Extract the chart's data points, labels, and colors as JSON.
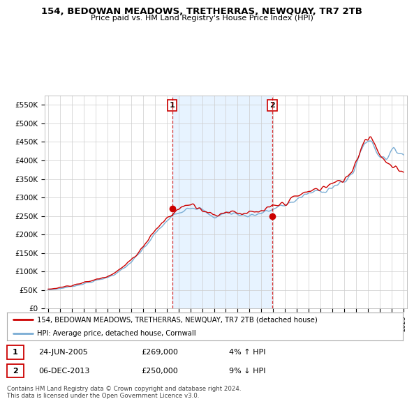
{
  "title": "154, BEDOWAN MEADOWS, TRETHERRAS, NEWQUAY, TR7 2TB",
  "subtitle": "Price paid vs. HM Land Registry's House Price Index (HPI)",
  "ylabel_ticks": [
    "£0",
    "£50K",
    "£100K",
    "£150K",
    "£200K",
    "£250K",
    "£300K",
    "£350K",
    "£400K",
    "£450K",
    "£500K",
    "£550K"
  ],
  "ytick_values": [
    0,
    50000,
    100000,
    150000,
    200000,
    250000,
    300000,
    350000,
    400000,
    450000,
    500000,
    550000
  ],
  "ylim": [
    0,
    575000
  ],
  "xlim_start": 1994.7,
  "xlim_end": 2025.3,
  "hpi_color": "#7aadd4",
  "price_color": "#cc0000",
  "shade_color": "#ddeeff",
  "marker1_date": 2005.48,
  "marker1_value": 269000,
  "marker2_date": 2013.92,
  "marker2_value": 250000,
  "transaction1_date": "24-JUN-2005",
  "transaction1_price": "£269,000",
  "transaction1_hpi": "4% ↑ HPI",
  "transaction2_date": "06-DEC-2013",
  "transaction2_price": "£250,000",
  "transaction2_hpi": "9% ↓ HPI",
  "legend_label1": "154, BEDOWAN MEADOWS, TRETHERRAS, NEWQUAY, TR7 2TB (detached house)",
  "legend_label2": "HPI: Average price, detached house, Cornwall",
  "footer": "Contains HM Land Registry data © Crown copyright and database right 2024.\nThis data is licensed under the Open Government Licence v3.0.",
  "background_color": "#ffffff",
  "grid_color": "#cccccc"
}
